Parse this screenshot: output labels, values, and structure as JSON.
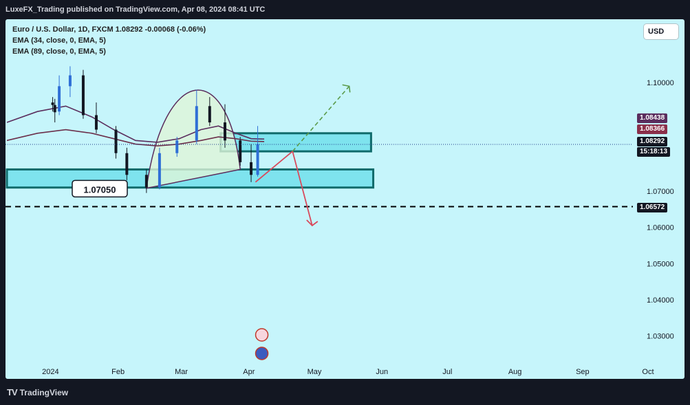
{
  "header": {
    "published": "LuxeFX_Trading published on TradingView.com, Apr 08, 2024 08:41 UTC"
  },
  "legend": {
    "symbol": "Euro / U.S. Dollar, 1D, FXCM  1.08292  -0.00068 (-0.06%)",
    "ema1": "EMA (34, close, 0, EMA, 5)",
    "ema2": "EMA (89, close, 0, EMA, 5)"
  },
  "currency_button": "USD",
  "support_label": "1.07050",
  "price_tags": {
    "ema_fast": "1.08438",
    "ema_slow": "1.08366",
    "last_price": "1.08292",
    "countdown": "15:18:13",
    "target": "1.06572"
  },
  "colors": {
    "background": "#c6f5fb",
    "up_candle": "#2f6fd6",
    "down_candle": "#131722",
    "ema_fast": "#5a2d5d",
    "ema_slow": "#6b2f4a",
    "zone_fill": "#7ee3ee",
    "zone_border": "#0f6b6b",
    "bearish_arrow": "#d94a5c",
    "bullish_arrow": "#5a9a4a"
  },
  "footer": {
    "brand": "TradingView",
    "logo": "TV"
  },
  "chart_data": {
    "type": "candlestick",
    "title": "",
    "xlabel": "",
    "ylabel": "",
    "y_ticks": [
      1.1,
      1.07,
      1.06,
      1.05,
      1.04,
      1.03
    ],
    "x_ticks": [
      "2024",
      "Feb",
      "Mar",
      "Apr",
      "May",
      "Jun",
      "Jul",
      "Aug",
      "Sep",
      "Oct"
    ],
    "ylim": [
      1.0225,
      1.1175
    ],
    "grid": false,
    "ohlc_approx": [
      {
        "date": "2024-01-02",
        "open": 1.0945,
        "high": 1.096,
        "low": 1.092,
        "close": 1.0938
      },
      {
        "date": "2024-01-03",
        "open": 1.0938,
        "high": 1.0955,
        "low": 1.089,
        "close": 1.0918
      },
      {
        "date": "2024-01-05",
        "open": 1.092,
        "high": 1.102,
        "low": 1.091,
        "close": 1.099
      },
      {
        "date": "2024-01-10",
        "open": 1.099,
        "high": 1.1045,
        "low": 1.096,
        "close": 1.102
      },
      {
        "date": "2024-01-16",
        "open": 1.102,
        "high": 1.1035,
        "low": 1.09,
        "close": 1.091
      },
      {
        "date": "2024-01-22",
        "open": 1.091,
        "high": 1.0945,
        "low": 1.086,
        "close": 1.087
      },
      {
        "date": "2024-01-31",
        "open": 1.087,
        "high": 1.088,
        "low": 1.079,
        "close": 1.0805
      },
      {
        "date": "2024-02-05",
        "open": 1.0805,
        "high": 1.082,
        "low": 1.073,
        "close": 1.0745
      },
      {
        "date": "2024-02-14",
        "open": 1.0745,
        "high": 1.076,
        "low": 1.0695,
        "close": 1.071
      },
      {
        "date": "2024-02-20",
        "open": 1.071,
        "high": 1.082,
        "low": 1.0705,
        "close": 1.0805
      },
      {
        "date": "2024-02-28",
        "open": 1.0805,
        "high": 1.085,
        "low": 1.0795,
        "close": 1.084
      },
      {
        "date": "2024-03-08",
        "open": 1.084,
        "high": 1.098,
        "low": 1.083,
        "close": 1.0935
      },
      {
        "date": "2024-03-14",
        "open": 1.0935,
        "high": 1.096,
        "low": 1.088,
        "close": 1.089
      },
      {
        "date": "2024-03-21",
        "open": 1.089,
        "high": 1.094,
        "low": 1.082,
        "close": 1.084
      },
      {
        "date": "2024-03-28",
        "open": 1.084,
        "high": 1.085,
        "low": 1.077,
        "close": 1.078
      },
      {
        "date": "2024-04-02",
        "open": 1.078,
        "high": 1.083,
        "low": 1.0725,
        "close": 1.0745
      },
      {
        "date": "2024-04-05",
        "open": 1.0745,
        "high": 1.088,
        "low": 1.074,
        "close": 1.083
      }
    ],
    "ema34_approx": [
      1.089,
      1.092,
      1.0935,
      1.0905,
      1.087,
      1.084,
      1.0835,
      1.0845,
      1.087,
      1.088,
      1.086,
      1.0845,
      1.0844
    ],
    "ema89_approx": [
      1.084,
      1.086,
      1.087,
      1.086,
      1.0845,
      1.083,
      1.0825,
      1.083,
      1.084,
      1.085,
      1.0845,
      1.0838,
      1.0837
    ],
    "zones": [
      {
        "name": "upper-zone",
        "from": 1.081,
        "to": 1.086
      },
      {
        "name": "lower-zone",
        "from": 1.071,
        "to": 1.076
      }
    ],
    "horizontal_levels": [
      {
        "value": 1.08292,
        "style": "dotted"
      },
      {
        "value": 1.06572,
        "style": "dashed"
      }
    ]
  }
}
